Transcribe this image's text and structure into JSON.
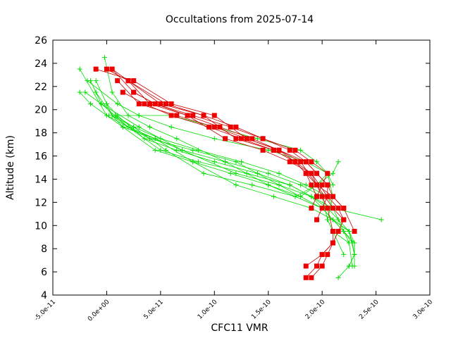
{
  "chart_data": {
    "type": "scatter",
    "title": "Occultations from 2025-07-14",
    "xlabel": "CFC11 VMR",
    "ylabel": "Altitude (km)",
    "xlim": [
      -5e-11,
      3e-10
    ],
    "ylim": [
      4,
      26
    ],
    "x_ticks": [
      -5e-11,
      0,
      5e-11,
      1e-10,
      1.5e-10,
      2e-10,
      2.5e-10,
      3e-10
    ],
    "x_tick_labels": [
      "-5.0e-11",
      "0.0e+00",
      "5.0e-11",
      "1.0e-10",
      "1.5e-10",
      "2.0e-10",
      "2.5e-10",
      "3.0e-10"
    ],
    "y_ticks": [
      4,
      6,
      8,
      10,
      12,
      14,
      16,
      18,
      20,
      22,
      24,
      26
    ],
    "y_tick_labels": [
      "4",
      "6",
      "8",
      "10",
      "12",
      "14",
      "16",
      "18",
      "20",
      "22",
      "24",
      "26"
    ],
    "grid": false,
    "legend": "none",
    "colors": {
      "green_series": "#00dd00",
      "red_series": "#ee0000",
      "red_line": "#cc0000"
    },
    "series": [
      {
        "color": "green",
        "marker": "plus",
        "x": [
          2.15e-10,
          2.25e-10,
          2.3e-10,
          2.3e-10,
          2.2e-10,
          2e-10,
          1.5e-10,
          1.1e-10,
          6.5e-11,
          4e-11,
          2e-11,
          5e-12,
          -2e-12
        ],
        "y": [
          5.5,
          6.5,
          7.5,
          8.5,
          9.5,
          11.5,
          13.5,
          15.5,
          17.5,
          18.5,
          19.5,
          21.5,
          24.5
        ]
      },
      {
        "color": "green",
        "marker": "plus",
        "x": [
          2.25e-10,
          2.3e-10,
          2.28e-10,
          2.2e-10,
          2.1e-10,
          2e-10,
          1.6e-10,
          1.2e-10,
          8e-11,
          4e-11,
          0,
          -2.5e-11
        ],
        "y": [
          6.5,
          7.5,
          8.5,
          9.5,
          10.5,
          11.5,
          13.5,
          15.5,
          16.5,
          17.5,
          19.5,
          23.5
        ]
      },
      {
        "color": "green",
        "marker": "plus",
        "x": [
          2.3e-10,
          2.3e-10,
          2.25e-10,
          2.1e-10,
          1.9e-10,
          1.6e-10,
          1.2e-10,
          7e-11,
          3e-11,
          -5e-12,
          -1.5e-11
        ],
        "y": [
          6.5,
          8.5,
          9.5,
          10.5,
          12.5,
          13.5,
          14.5,
          16.5,
          18.5,
          20.5,
          22.5
        ]
      },
      {
        "color": "green",
        "marker": "plus",
        "x": [
          2.55e-10,
          2.1e-10,
          1.9e-10,
          1.7e-10,
          1.3e-10,
          8.5e-11,
          5e-11,
          2e-11,
          -5e-12,
          -2e-11
        ],
        "y": [
          10.5,
          11.5,
          12.5,
          13.5,
          14.5,
          15.5,
          16.5,
          18.5,
          20.5,
          21.5
        ]
      },
      {
        "color": "green",
        "marker": "plus",
        "x": [
          2.2e-10,
          2.1e-10,
          2.05e-10,
          2.1e-10,
          2.05e-10,
          1.85e-10,
          1.5e-10,
          1e-10,
          6e-11,
          3e-11,
          1e-11,
          -1.8e-11
        ],
        "y": [
          7.5,
          9.5,
          10.5,
          12.5,
          14.5,
          15.5,
          16.5,
          17.5,
          18.5,
          19.5,
          20.5,
          22.5
        ]
      },
      {
        "color": "green",
        "marker": "plus",
        "x": [
          2.28e-10,
          2.25e-10,
          2.1e-10,
          1.9e-10,
          1.55e-10,
          1.2e-10,
          8e-11,
          4.5e-11,
          1.5e-11,
          -1.5e-11,
          -2.5e-11
        ],
        "y": [
          8.5,
          9.5,
          10.5,
          11.5,
          12.5,
          13.5,
          15.5,
          16.5,
          18.5,
          20.5,
          21.5
        ]
      },
      {
        "color": "green",
        "marker": "plus",
        "x": [
          2.28e-10,
          2.25e-10,
          2.1e-10,
          2.05e-10,
          2e-10,
          1.8e-10,
          1.5e-10,
          1.1e-10,
          7e-11,
          4.5e-11,
          1.5e-11,
          5e-12,
          -1e-11
        ],
        "y": [
          6.5,
          8.5,
          9.5,
          10.5,
          12.5,
          13.5,
          14.5,
          15.5,
          16.5,
          17.5,
          18.5,
          19.5,
          22.5
        ]
      },
      {
        "color": "green",
        "marker": "plus",
        "x": [
          2.25e-10,
          2.15e-10,
          2.1e-10,
          2.05e-10,
          1.85e-10,
          1.6e-10,
          1.25e-10,
          8.5e-11,
          5e-11,
          2.5e-11,
          5e-12,
          -1e-11
        ],
        "y": [
          8.5,
          10.5,
          11.5,
          12.5,
          13.5,
          14.5,
          15.5,
          16.5,
          17.5,
          18.5,
          19.5,
          21.5
        ]
      },
      {
        "color": "green",
        "marker": "plus",
        "x": [
          2.3e-10,
          2.25e-10,
          2.15e-10,
          2.05e-10,
          1.9e-10,
          1.7e-10,
          1.4e-10,
          1e-10,
          6.5e-11,
          3.5e-11,
          1e-11,
          0
        ],
        "y": [
          7.5,
          9.5,
          10.5,
          11.5,
          12.5,
          13.5,
          14.5,
          15.5,
          16.5,
          17.5,
          19.5,
          20.5
        ]
      },
      {
        "color": "green",
        "marker": "plus",
        "x": [
          2.1e-10,
          2.05e-10,
          1.95e-10,
          1.8e-10,
          1.4e-10,
          1e-10,
          6e-11,
          3e-11,
          2e-12
        ],
        "y": [
          13.5,
          14.5,
          15.5,
          16.5,
          17.5,
          18.5,
          19.5,
          19.5,
          19.5
        ]
      },
      {
        "color": "green",
        "marker": "plus",
        "x": [
          2.15e-10,
          2.1e-10,
          1.95e-10,
          1.75e-10,
          1.35e-10,
          9e-11,
          5.5e-11,
          2.5e-11,
          8e-12
        ],
        "y": [
          15.5,
          14.5,
          13.5,
          12.5,
          13.5,
          14.5,
          16.5,
          18.5,
          19.5
        ]
      },
      {
        "color": "green",
        "marker": "plus",
        "x": [
          2.05e-10,
          1.95e-10,
          1.8e-10,
          1.5e-10,
          1.15e-10,
          8e-11,
          4.5e-11,
          2e-11,
          5e-12
        ],
        "y": [
          14.5,
          13.5,
          12.5,
          13.5,
          14.5,
          15.5,
          17.5,
          18.5,
          19.5
        ]
      },
      {
        "color": "red",
        "marker": "square",
        "x": [
          1.9e-10,
          2e-10,
          2.05e-10,
          2.1e-10,
          2.1e-10,
          2.05e-10,
          2e-10,
          1.9e-10,
          1.75e-10,
          1.55e-10,
          1.2e-10,
          9e-11,
          5.5e-11,
          2e-11,
          5e-12
        ],
        "y": [
          5.5,
          6.5,
          7.5,
          8.5,
          9.5,
          11.5,
          12.5,
          14.5,
          15.5,
          16.5,
          17.5,
          19.5,
          20.5,
          22.5,
          23.5
        ]
      },
      {
        "color": "red",
        "marker": "square",
        "x": [
          1.85e-10,
          1.95e-10,
          2e-10,
          2.1e-10,
          2.15e-10,
          2.2e-10,
          2.1e-10,
          1.95e-10,
          1.8e-10,
          1.6e-10,
          1.3e-10,
          1e-10,
          6e-11,
          2.5e-11,
          -1e-11
        ],
        "y": [
          5.5,
          6.5,
          7.5,
          8.5,
          9.5,
          10.5,
          11.5,
          13.5,
          15.5,
          16.5,
          17.5,
          19.5,
          20.5,
          22.5,
          23.5
        ]
      },
      {
        "color": "red",
        "marker": "square",
        "x": [
          1.85e-10,
          2e-10,
          2.1e-10,
          2.15e-10,
          2.2e-10,
          2.15e-10,
          2.05e-10,
          1.9e-10,
          1.7e-10,
          1.45e-10,
          1.1e-10,
          7.5e-11,
          4e-11,
          2e-11,
          0
        ],
        "y": [
          6.5,
          7.5,
          8.5,
          9.5,
          10.5,
          11.5,
          12.5,
          14.5,
          15.5,
          16.5,
          17.5,
          19.5,
          20.5,
          22.5,
          23.5
        ]
      },
      {
        "color": "red",
        "marker": "square",
        "x": [
          2.3e-10,
          2.2e-10,
          2.1e-10,
          2.05e-10,
          1.95e-10,
          1.85e-10,
          1.7e-10,
          1.45e-10,
          1.15e-10,
          8e-11,
          4.5e-11,
          2.5e-11,
          5e-12
        ],
        "y": [
          9.5,
          11.5,
          12.5,
          13.5,
          14.5,
          15.5,
          16.5,
          17.5,
          18.5,
          19.5,
          20.5,
          21.5,
          23.5
        ]
      },
      {
        "color": "red",
        "marker": "square",
        "x": [
          1.95e-10,
          2e-10,
          2.05e-10,
          2.05e-10,
          1.95e-10,
          1.85e-10,
          1.6e-10,
          1.3e-10,
          1e-10,
          6.5e-11,
          3e-11,
          1e-11
        ],
        "y": [
          10.5,
          11.5,
          12.5,
          13.5,
          14.5,
          15.5,
          16.5,
          17.5,
          18.5,
          19.5,
          20.5,
          22.5
        ]
      },
      {
        "color": "red",
        "marker": "square",
        "x": [
          1.9e-10,
          1.95e-10,
          2e-10,
          2.05e-10,
          1.9e-10,
          1.75e-10,
          1.45e-10,
          1.2e-10,
          9e-11,
          5e-11,
          2e-11
        ],
        "y": [
          11.5,
          12.5,
          13.5,
          14.5,
          15.5,
          16.5,
          17.5,
          18.5,
          19.5,
          20.5,
          22.5
        ]
      },
      {
        "color": "red",
        "marker": "square",
        "x": [
          2.2e-10,
          2.1e-10,
          1.95e-10,
          1.85e-10,
          1.75e-10,
          1.6e-10,
          1.35e-10,
          1.05e-10,
          7.5e-11,
          4.5e-11,
          2.5e-11
        ],
        "y": [
          11.5,
          12.5,
          13.5,
          14.5,
          15.5,
          16.5,
          17.5,
          18.5,
          19.5,
          20.5,
          21.5
        ]
      },
      {
        "color": "red",
        "marker": "square",
        "x": [
          1.95e-10,
          1.9e-10,
          1.85e-10,
          1.75e-10,
          1.55e-10,
          1.25e-10,
          9.5e-11,
          6e-11,
          3.5e-11,
          1.5e-11
        ],
        "y": [
          12.5,
          13.5,
          14.5,
          15.5,
          16.5,
          17.5,
          18.5,
          19.5,
          20.5,
          21.5
        ]
      }
    ]
  }
}
